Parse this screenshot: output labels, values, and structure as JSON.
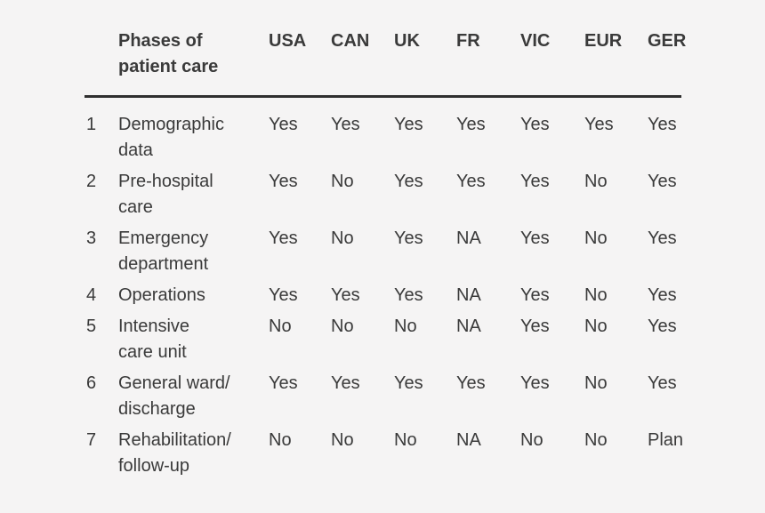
{
  "page": {
    "background_color": "#f5f4f4",
    "text_color": "#3a3a3a",
    "rule_color": "#2f2f2f"
  },
  "chart_data": {
    "type": "table",
    "title": "",
    "row_header": {
      "label_lines": [
        "Phases of",
        "patient care"
      ]
    },
    "columns": [
      "USA",
      "CAN",
      "UK",
      "FR",
      "VIC",
      "EUR",
      "GER"
    ],
    "rows": [
      {
        "index": "1",
        "phase_lines": [
          "Demographic",
          "data"
        ],
        "values": [
          "Yes",
          "Yes",
          "Yes",
          "Yes",
          "Yes",
          "Yes",
          "Yes"
        ]
      },
      {
        "index": "2",
        "phase_lines": [
          "Pre-hospital",
          "care"
        ],
        "values": [
          "Yes",
          "No",
          "Yes",
          "Yes",
          "Yes",
          "No",
          "Yes"
        ]
      },
      {
        "index": "3",
        "phase_lines": [
          "Emergency",
          "department"
        ],
        "values": [
          "Yes",
          "No",
          "Yes",
          "NA",
          "Yes",
          "No",
          "Yes"
        ]
      },
      {
        "index": "4",
        "phase_lines": [
          "Operations"
        ],
        "values": [
          "Yes",
          "Yes",
          "Yes",
          "NA",
          "Yes",
          "No",
          "Yes"
        ]
      },
      {
        "index": "5",
        "phase_lines": [
          "Intensive",
          "care unit"
        ],
        "values": [
          "No",
          "No",
          "No",
          "NA",
          "Yes",
          "No",
          "Yes"
        ]
      },
      {
        "index": "6",
        "phase_lines": [
          "General ward/",
          "discharge"
        ],
        "values": [
          "Yes",
          "Yes",
          "Yes",
          "Yes",
          "Yes",
          "No",
          "Yes"
        ]
      },
      {
        "index": "7",
        "phase_lines": [
          "Rehabilitation/",
          "follow-up"
        ],
        "values": [
          "No",
          "No",
          "No",
          "NA",
          "No",
          "No",
          "Plan"
        ]
      }
    ]
  }
}
